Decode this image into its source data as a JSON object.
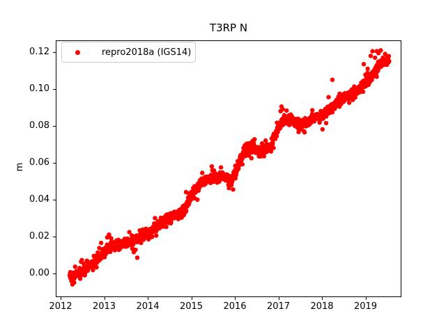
{
  "figure": {
    "title": "T3RP N",
    "background_color": "#ffffff"
  },
  "chart_data": {
    "type": "scatter",
    "title": "T3RP N",
    "xlabel": "",
    "ylabel": "m",
    "xlim": [
      2011.888,
      2019.824
    ],
    "ylim": [
      -0.0129,
      0.1264
    ],
    "grid": false,
    "x_ticks": {
      "values": [
        2012,
        2013,
        2014,
        2015,
        2016,
        2017,
        2018,
        2019
      ],
      "labels": [
        "2012",
        "2013",
        "2014",
        "2015",
        "2016",
        "2017",
        "2018",
        "2019"
      ]
    },
    "y_ticks": {
      "values": [
        0.0,
        0.02,
        0.04,
        0.06,
        0.08,
        0.1,
        0.12
      ],
      "labels": [
        "0.00",
        "0.02",
        "0.04",
        "0.06",
        "0.08",
        "0.10",
        "0.12"
      ]
    },
    "legend": {
      "position": "upper left",
      "entries": [
        {
          "label": "repro2018a (IGS14)",
          "marker": "point",
          "color": "#ff0000"
        }
      ]
    },
    "series": [
      {
        "name": "repro2018a (IGS14)",
        "color": "#ff0000",
        "marker": "o",
        "marker_radius_px": 3.2,
        "x_start": 2012.21,
        "x_end": 2019.54,
        "n_points": 2000,
        "noise_sd": 0.0011,
        "noise_sd_wide": 0.0024,
        "wide_fraction": 0.12,
        "seed": 7,
        "trend_anchors": [
          [
            2012.21,
            -0.001
          ],
          [
            2012.3,
            -0.0015
          ],
          [
            2012.4,
            0.0005
          ],
          [
            2012.5,
            0.0015
          ],
          [
            2012.65,
            0.004
          ],
          [
            2012.8,
            0.0065
          ],
          [
            2012.95,
            0.01
          ],
          [
            2013.05,
            0.0135
          ],
          [
            2013.15,
            0.0145
          ],
          [
            2013.3,
            0.015
          ],
          [
            2013.45,
            0.016
          ],
          [
            2013.6,
            0.017
          ],
          [
            2013.75,
            0.0185
          ],
          [
            2013.9,
            0.0205
          ],
          [
            2014.0,
            0.022
          ],
          [
            2014.15,
            0.0245
          ],
          [
            2014.3,
            0.027
          ],
          [
            2014.45,
            0.0295
          ],
          [
            2014.6,
            0.0315
          ],
          [
            2014.75,
            0.033
          ],
          [
            2014.88,
            0.036
          ],
          [
            2015.0,
            0.0415
          ],
          [
            2015.1,
            0.046
          ],
          [
            2015.2,
            0.049
          ],
          [
            2015.35,
            0.051
          ],
          [
            2015.5,
            0.052
          ],
          [
            2015.65,
            0.053
          ],
          [
            2015.8,
            0.052
          ],
          [
            2015.92,
            0.05
          ],
          [
            2016.0,
            0.054
          ],
          [
            2016.1,
            0.06
          ],
          [
            2016.2,
            0.065
          ],
          [
            2016.3,
            0.069
          ],
          [
            2016.42,
            0.0685
          ],
          [
            2016.55,
            0.066
          ],
          [
            2016.7,
            0.067
          ],
          [
            2016.82,
            0.0695
          ],
          [
            2016.92,
            0.074
          ],
          [
            2017.0,
            0.079
          ],
          [
            2017.08,
            0.082
          ],
          [
            2017.2,
            0.0835
          ],
          [
            2017.35,
            0.083
          ],
          [
            2017.5,
            0.0805
          ],
          [
            2017.65,
            0.082
          ],
          [
            2017.8,
            0.0845
          ],
          [
            2017.95,
            0.085
          ],
          [
            2018.1,
            0.087
          ],
          [
            2018.25,
            0.0905
          ],
          [
            2018.4,
            0.0935
          ],
          [
            2018.55,
            0.0955
          ],
          [
            2018.7,
            0.0975
          ],
          [
            2018.85,
            0.1
          ],
          [
            2019.0,
            0.1035
          ],
          [
            2019.1,
            0.105
          ],
          [
            2019.2,
            0.109
          ],
          [
            2019.3,
            0.1125
          ],
          [
            2019.42,
            0.1145
          ],
          [
            2019.54,
            0.116
          ]
        ],
        "outliers": [
          [
            2012.27,
            -0.006
          ],
          [
            2012.31,
            -0.005
          ],
          [
            2012.93,
            0.0165
          ],
          [
            2013.07,
            0.0195
          ],
          [
            2013.11,
            0.021
          ],
          [
            2013.16,
            0.019
          ],
          [
            2013.68,
            0.0115
          ],
          [
            2013.76,
            0.0085
          ],
          [
            2015.47,
            0.058
          ],
          [
            2015.96,
            0.0455
          ],
          [
            2016.38,
            0.0625
          ],
          [
            2017.05,
            0.088
          ],
          [
            2017.07,
            0.0905
          ],
          [
            2017.1,
            0.089
          ],
          [
            2017.6,
            0.0765
          ],
          [
            2017.78,
            0.0885
          ],
          [
            2018.24,
            0.105
          ],
          [
            2018.96,
            0.1135
          ],
          [
            2019.05,
            0.111
          ],
          [
            2019.12,
            0.118
          ],
          [
            2019.16,
            0.1205
          ],
          [
            2019.22,
            0.117
          ],
          [
            2019.26,
            0.1205
          ],
          [
            2019.3,
            0.1195
          ],
          [
            2019.35,
            0.121
          ],
          [
            2019.45,
            0.119
          ],
          [
            2019.5,
            0.1175
          ]
        ]
      }
    ]
  }
}
